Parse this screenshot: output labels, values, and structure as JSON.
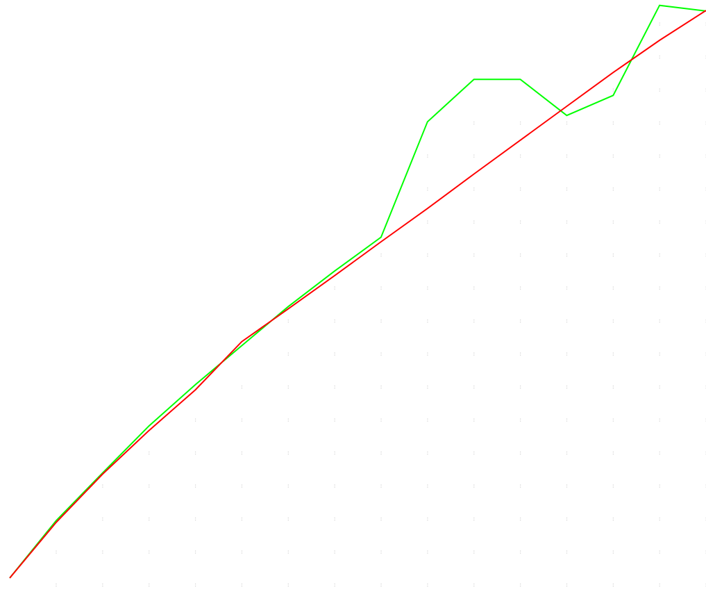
{
  "chart_data": {
    "type": "line",
    "title": "",
    "xlabel": "",
    "ylabel": "",
    "grid": true,
    "grid_style": "dotted",
    "x": [
      0,
      1,
      2,
      3,
      4,
      5,
      6,
      7,
      8,
      9,
      10,
      11,
      12,
      13,
      14,
      15
    ],
    "xlim": [
      0,
      15
    ],
    "ylim": [
      0,
      1
    ],
    "series": [
      {
        "color": "#00ff00",
        "values": [
          0.0,
          0.1,
          0.183,
          0.265,
          0.337,
          0.405,
          0.473,
          0.535,
          0.594,
          0.795,
          0.869,
          0.869,
          0.806,
          0.841,
          0.998,
          0.988
        ]
      },
      {
        "color": "#ff0000",
        "values": [
          0.0,
          0.097,
          0.181,
          0.257,
          0.328,
          0.412,
          0.469,
          0.527,
          0.586,
          0.644,
          0.704,
          0.763,
          0.822,
          0.881,
          0.937,
          0.989
        ]
      }
    ]
  }
}
